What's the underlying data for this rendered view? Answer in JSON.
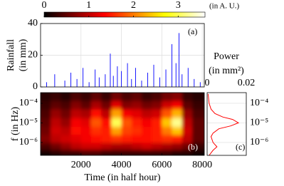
{
  "chart_data": [
    {
      "type": "colorbar",
      "colormap": "hot",
      "xlim": [
        0,
        3.6
      ],
      "xticks": [
        0,
        1,
        2,
        3
      ],
      "label": "(in A. U.)"
    },
    {
      "type": "bar",
      "panel_label": "(a)",
      "ylabel": [
        "Rainfall",
        "(in mm)"
      ],
      "color": "#0000ff",
      "x": [
        300,
        700,
        1200,
        1500,
        1800,
        2100,
        2400,
        2700,
        2900,
        3200,
        3450,
        3600,
        3800,
        4000,
        4300,
        4500,
        4700,
        5000,
        5300,
        5600,
        5900,
        6200,
        6500,
        6700,
        6850,
        7000,
        7300,
        7600,
        7900
      ],
      "values": [
        3,
        8,
        4,
        9,
        5,
        12,
        3,
        11,
        6,
        8,
        21,
        7,
        13,
        10,
        15,
        5,
        12,
        4,
        9,
        14,
        6,
        11,
        27,
        15,
        34,
        8,
        12,
        5,
        3
      ],
      "xlim": [
        0,
        8100
      ],
      "ylim": [
        0,
        40
      ],
      "yticks": [
        0,
        20,
        40
      ],
      "grid": true
    },
    {
      "type": "heatmap",
      "panel_label": "(b)",
      "xlabel": "Time (in half hour)",
      "ylabel": "f (in Hz)",
      "colormap": "hot",
      "log_y": true,
      "x": [
        250,
        750,
        1250,
        1750,
        2250,
        2750,
        3250,
        3750,
        4250,
        4750,
        5250,
        5750,
        6250,
        6750,
        7250,
        7750
      ],
      "y": [
        0.0002,
        8e-05,
        3e-05,
        1e-05,
        4e-06,
        1.5e-06,
        6e-07,
        3e-07
      ],
      "z": [
        [
          0.2,
          0.3,
          0.2,
          0.4,
          0.3,
          0.5,
          0.3,
          0.6,
          0.4,
          0.5,
          0.3,
          0.4,
          0.6,
          0.7,
          0.3,
          0.2
        ],
        [
          0.3,
          0.5,
          0.4,
          0.7,
          0.5,
          0.9,
          0.6,
          1.2,
          0.7,
          0.8,
          0.6,
          0.7,
          1.1,
          1.3,
          0.5,
          0.3
        ],
        [
          0.4,
          0.8,
          0.6,
          1.0,
          0.9,
          1.4,
          1.0,
          2.2,
          1.3,
          1.2,
          1.0,
          1.1,
          1.8,
          2.3,
          0.8,
          0.4
        ],
        [
          0.5,
          1.0,
          0.8,
          1.3,
          1.2,
          1.8,
          1.4,
          3.0,
          1.8,
          1.5,
          1.3,
          1.5,
          2.4,
          3.2,
          1.0,
          0.5
        ],
        [
          0.6,
          1.1,
          1.0,
          1.4,
          1.3,
          1.6,
          1.5,
          2.2,
          1.7,
          1.6,
          1.4,
          1.5,
          2.0,
          2.4,
          1.1,
          0.5
        ],
        [
          0.7,
          1.0,
          1.1,
          1.2,
          1.3,
          1.4,
          1.5,
          1.6,
          1.5,
          1.4,
          1.4,
          1.5,
          1.6,
          1.5,
          1.0,
          0.5
        ],
        [
          0.4,
          0.6,
          0.8,
          1.0,
          1.1,
          1.1,
          1.0,
          0.9,
          0.9,
          1.0,
          1.1,
          1.0,
          0.9,
          0.8,
          0.6,
          0.3
        ],
        [
          0.1,
          0.2,
          0.3,
          0.3,
          0.4,
          0.4,
          0.3,
          0.3,
          0.3,
          0.3,
          0.3,
          0.3,
          0.3,
          0.2,
          0.2,
          0.1
        ]
      ],
      "xlim": [
        0,
        8100
      ],
      "ylim": [
        2.2e-07,
        0.00035
      ],
      "xticks": [
        2000,
        4000,
        6000,
        8000
      ],
      "yticks": [
        {
          "value": 0.0001,
          "label": "10⁻⁴"
        },
        {
          "value": 1e-05,
          "label": "10⁻⁵"
        },
        {
          "value": 1e-06,
          "label": "10⁻⁶"
        }
      ]
    },
    {
      "type": "line",
      "panel_label": "(c)",
      "xlabel": [
        "Power",
        "(in mm²)"
      ],
      "color": "#ff0000",
      "log_y": true,
      "grid": true,
      "values": [
        0.0005,
        0.001,
        0.002,
        0.004,
        0.008,
        0.013,
        0.016,
        0.012,
        0.006,
        0.003,
        0.002,
        0.003,
        0.005,
        0.003,
        0.001
      ],
      "y": [
        0.0003,
        0.0001,
        5e-05,
        3e-05,
        2e-05,
        1.5e-05,
        1e-05,
        7e-06,
        5e-06,
        3e-06,
        2e-06,
        1e-06,
        6e-07,
        4e-07,
        2.2e-07
      ],
      "xlim": [
        0,
        0.02
      ],
      "xticks": [
        0,
        0.02
      ],
      "ylim": [
        2.2e-07,
        0.00035
      ],
      "yticks": [
        {
          "value": 0.0001,
          "label": "10⁻⁴"
        },
        {
          "value": 1e-05,
          "label": "10⁻⁵"
        },
        {
          "value": 1e-06,
          "label": "10⁻⁶"
        }
      ]
    }
  ]
}
